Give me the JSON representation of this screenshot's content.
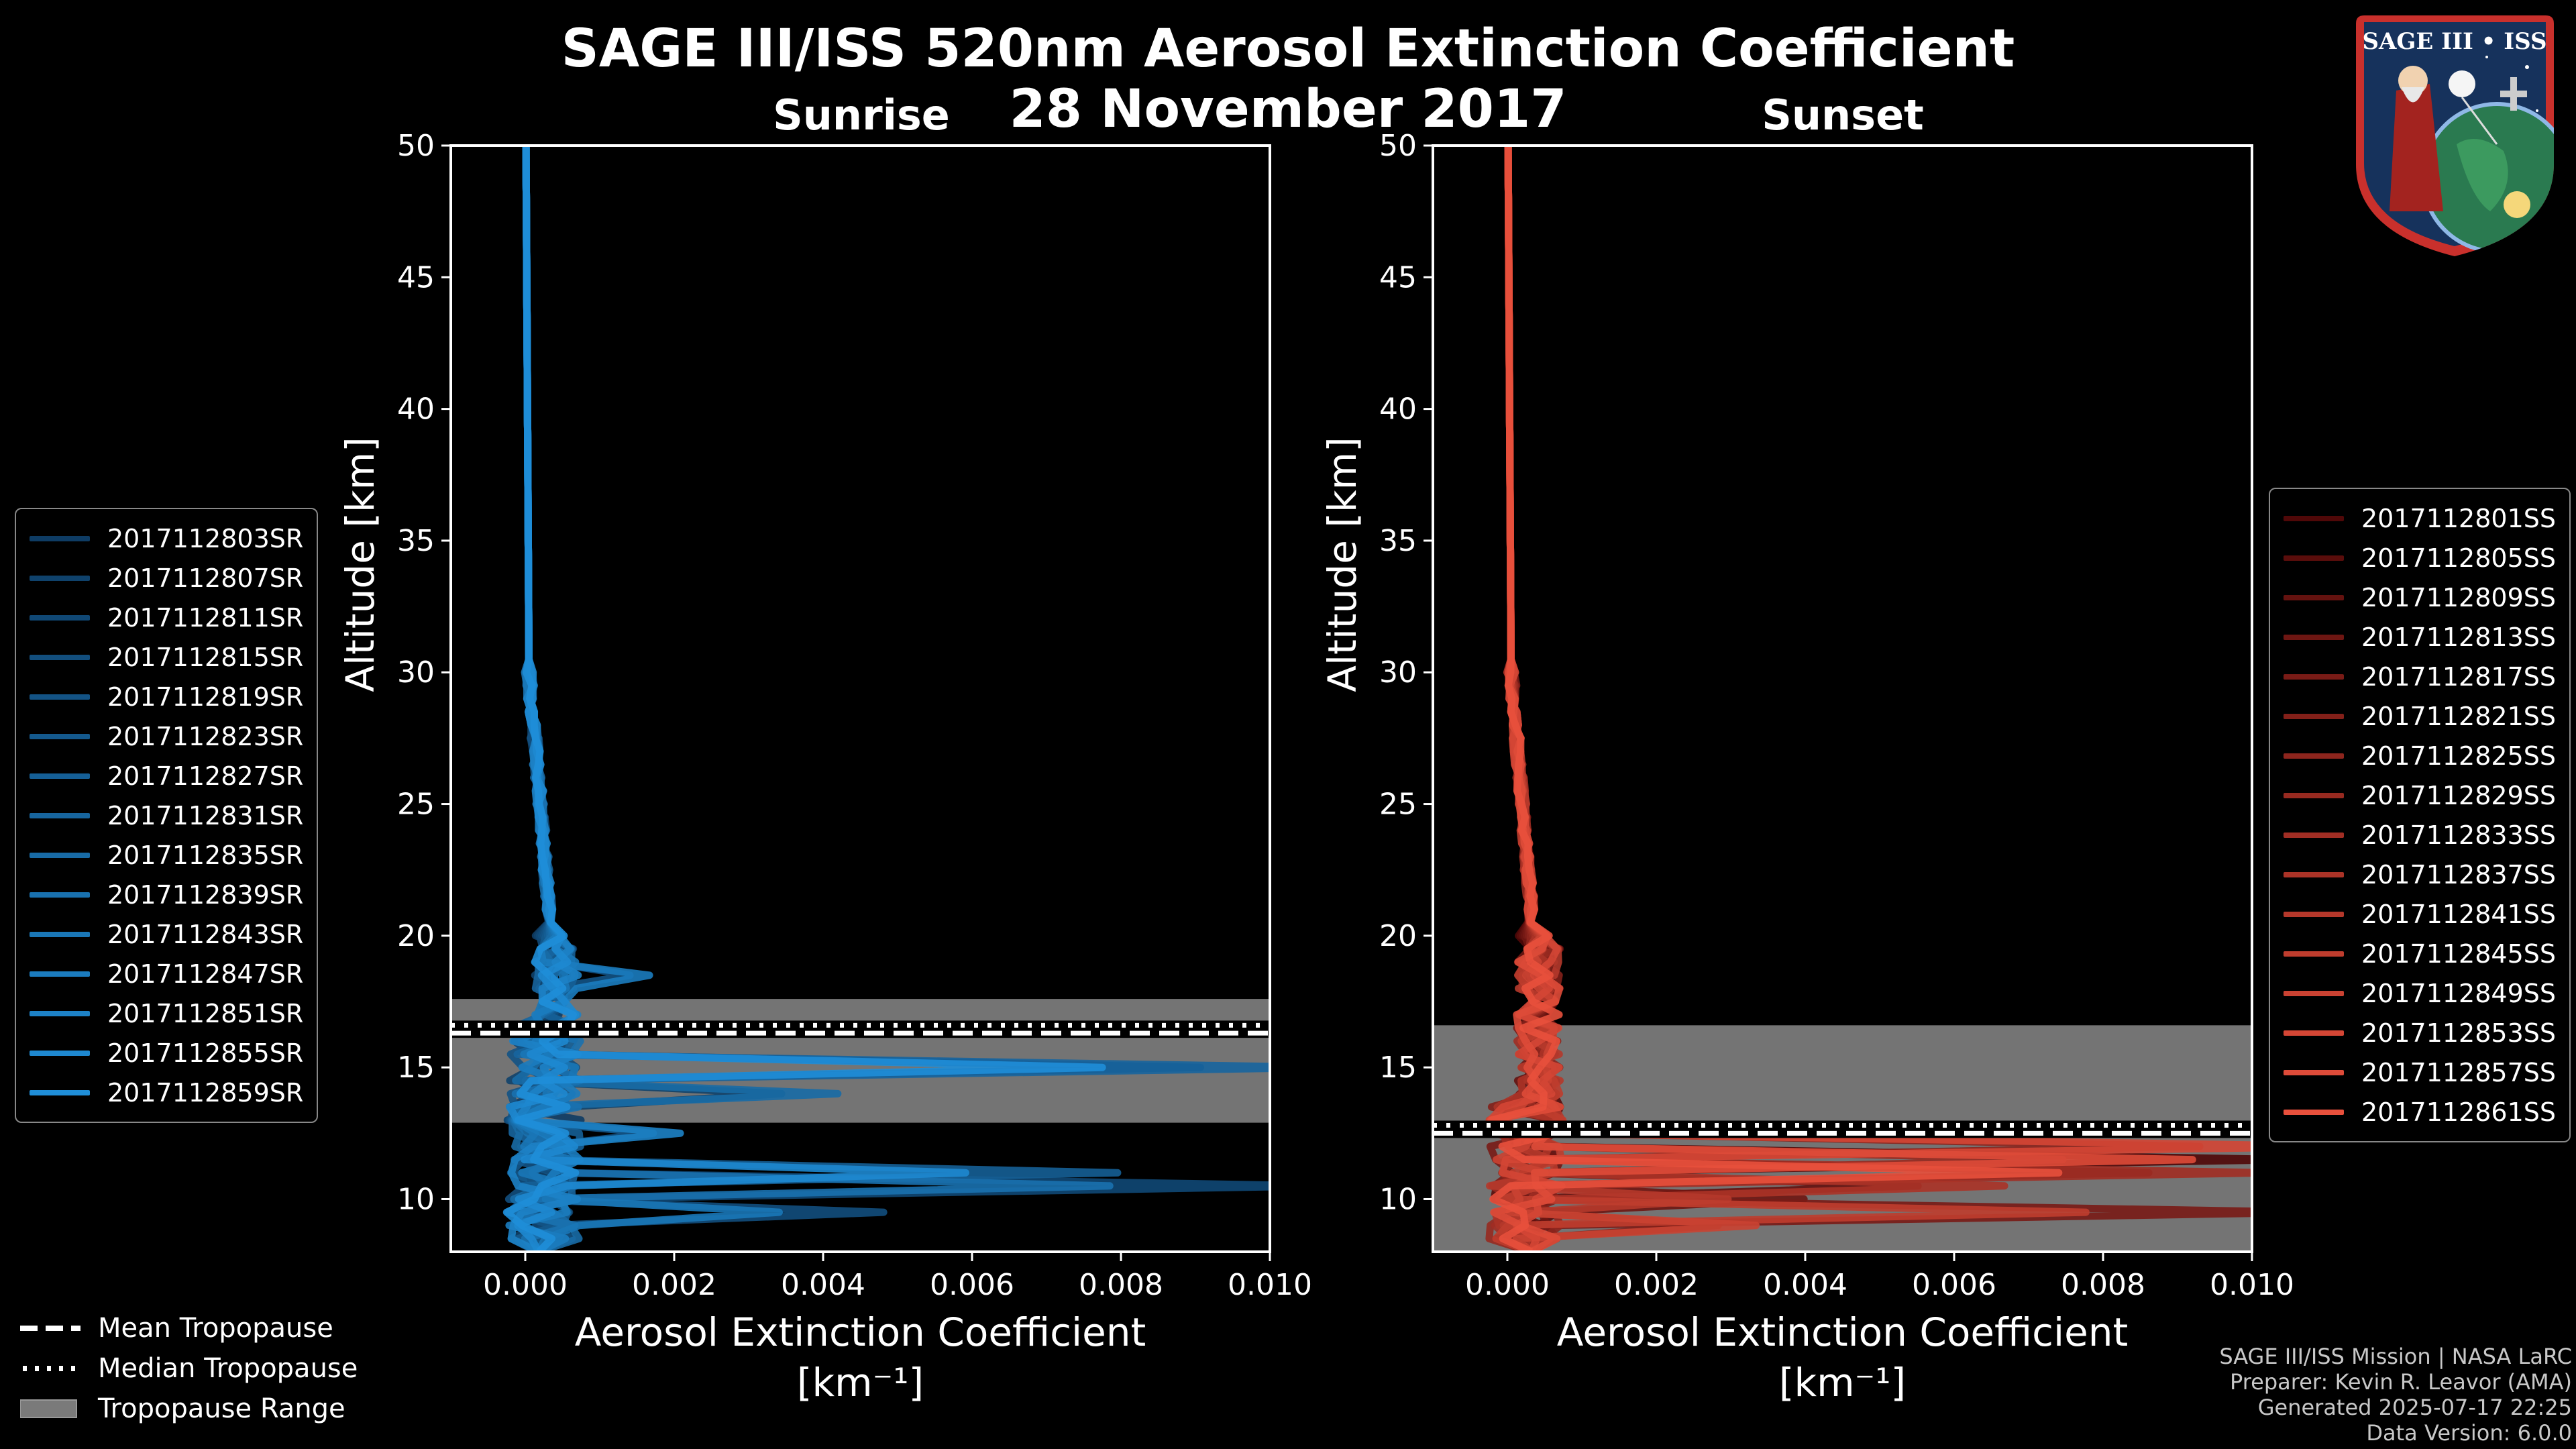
{
  "title_line1": "SAGE III/ISS 520nm Aerosol Extinction Coefficient",
  "title_line2": "28 November 2017",
  "logo_text": "SAGE III • ISS",
  "colors": {
    "background": "#000000",
    "sunrise": "#1f8ed8",
    "sunset": "#e8503c",
    "tropopause_range": "#7a7a7a"
  },
  "chart_data": [
    {
      "type": "line",
      "panel": "sunrise",
      "title": "Sunrise",
      "xlabel": "Aerosol Extinction Coefficient",
      "xunit": "[km⁻¹]",
      "ylabel": "Altitude [km]",
      "xlim": [
        -0.001,
        0.01
      ],
      "ylim": [
        8,
        50
      ],
      "xticks": [
        "0.000",
        "0.002",
        "0.004",
        "0.006",
        "0.008",
        "0.010"
      ],
      "xtick_values": [
        0,
        0.002,
        0.004,
        0.006,
        0.008,
        0.01
      ],
      "yticks": [
        10,
        15,
        20,
        25,
        30,
        35,
        40,
        45,
        50
      ],
      "tropopause": {
        "mean": 16.3,
        "median": 16.6,
        "range": [
          12.9,
          17.6
        ]
      },
      "series": [
        {
          "name": "2017112803SR"
        },
        {
          "name": "2017112807SR"
        },
        {
          "name": "2017112811SR"
        },
        {
          "name": "2017112815SR"
        },
        {
          "name": "2017112819SR"
        },
        {
          "name": "2017112823SR"
        },
        {
          "name": "2017112827SR"
        },
        {
          "name": "2017112831SR"
        },
        {
          "name": "2017112835SR"
        },
        {
          "name": "2017112839SR"
        },
        {
          "name": "2017112843SR"
        },
        {
          "name": "2017112847SR"
        },
        {
          "name": "2017112851SR"
        },
        {
          "name": "2017112855SR"
        },
        {
          "name": "2017112859SR"
        }
      ]
    },
    {
      "type": "line",
      "panel": "sunset",
      "title": "Sunset",
      "xlabel": "Aerosol Extinction Coefficient",
      "xunit": "[km⁻¹]",
      "ylabel": "Altitude [km]",
      "xlim": [
        -0.001,
        0.01
      ],
      "ylim": [
        8,
        50
      ],
      "xticks": [
        "0.000",
        "0.002",
        "0.004",
        "0.006",
        "0.008",
        "0.010"
      ],
      "xtick_values": [
        0,
        0.002,
        0.004,
        0.006,
        0.008,
        0.01
      ],
      "yticks": [
        10,
        15,
        20,
        25,
        30,
        35,
        40,
        45,
        50
      ],
      "tropopause": {
        "mean": 12.5,
        "median": 12.8,
        "range": [
          8,
          16.6
        ]
      },
      "series": [
        {
          "name": "2017112801SS"
        },
        {
          "name": "2017112805SS"
        },
        {
          "name": "2017112809SS"
        },
        {
          "name": "2017112813SS"
        },
        {
          "name": "2017112817SS"
        },
        {
          "name": "2017112821SS"
        },
        {
          "name": "2017112825SS"
        },
        {
          "name": "2017112829SS"
        },
        {
          "name": "2017112833SS"
        },
        {
          "name": "2017112837SS"
        },
        {
          "name": "2017112841SS"
        },
        {
          "name": "2017112845SS"
        },
        {
          "name": "2017112849SS"
        },
        {
          "name": "2017112853SS"
        },
        {
          "name": "2017112857SS"
        },
        {
          "name": "2017112861SS"
        }
      ]
    }
  ],
  "bottom_legend": {
    "mean": "Mean Tropopause",
    "median": "Median Tropopause",
    "range": "Tropopause Range"
  },
  "credits": {
    "line1": "SAGE III/ISS Mission | NASA LaRC",
    "line2": "Preparer: Kevin R. Leavor (AMA)",
    "line3": "Generated 2025-07-17 22:25",
    "line4": "Data Version: 6.0.0"
  }
}
